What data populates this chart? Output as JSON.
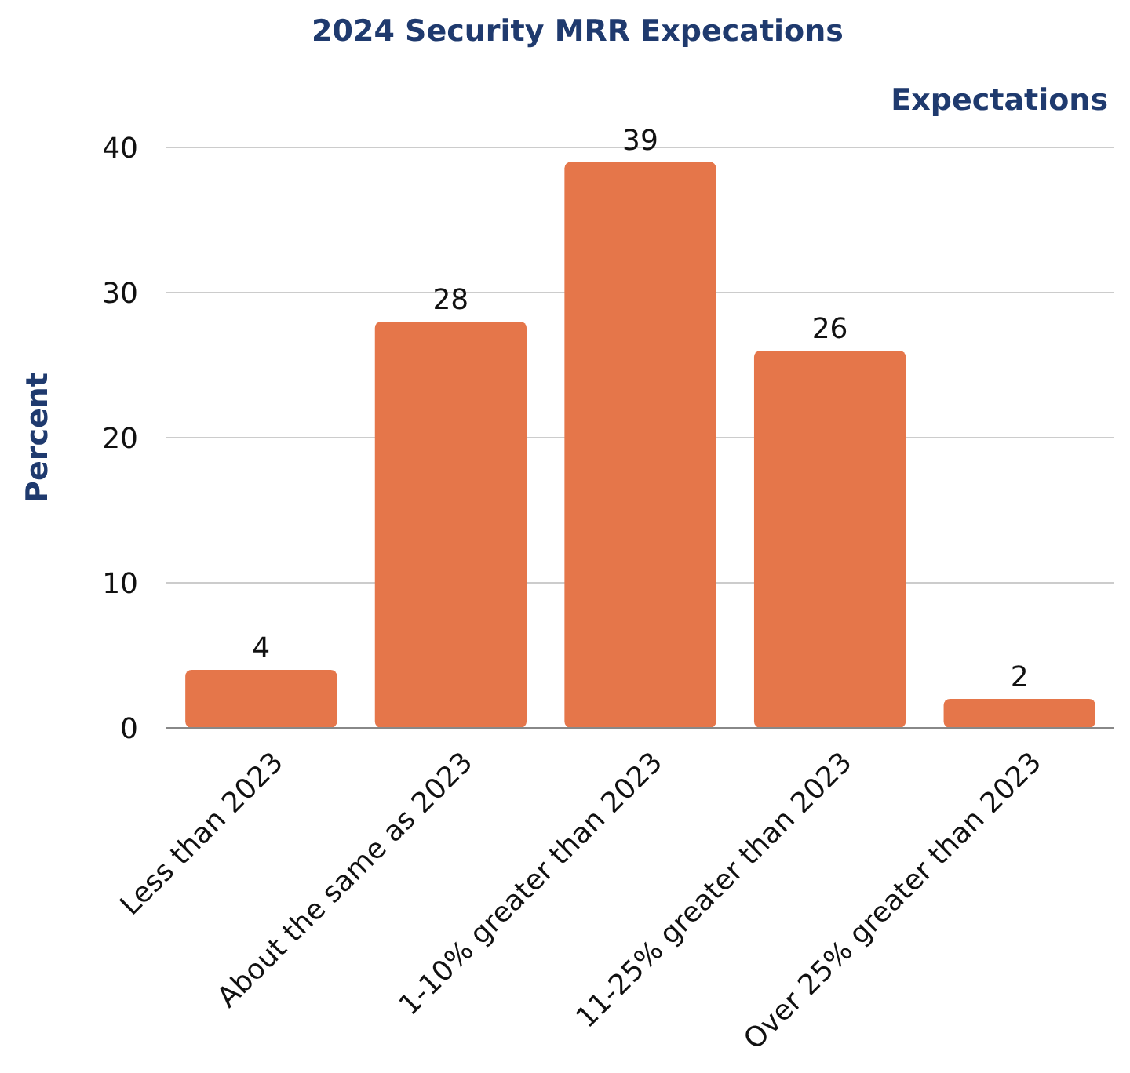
{
  "chart_data": {
    "type": "bar",
    "title": "2024 Security MRR Expecations",
    "xlabel": "Expectations",
    "ylabel": "Percent",
    "categories": [
      "Less than 2023",
      "About the same as 2023",
      "1-10% greater than 2023",
      "11-25% greater than 2023",
      "Over 25% greater than 2023"
    ],
    "values": [
      4,
      28,
      39,
      26,
      2
    ],
    "color": "#e5764a",
    "ylim": [
      0,
      40
    ],
    "yticks": [
      0,
      10,
      20,
      30,
      40
    ],
    "grid": "y",
    "data_labels": true
  }
}
